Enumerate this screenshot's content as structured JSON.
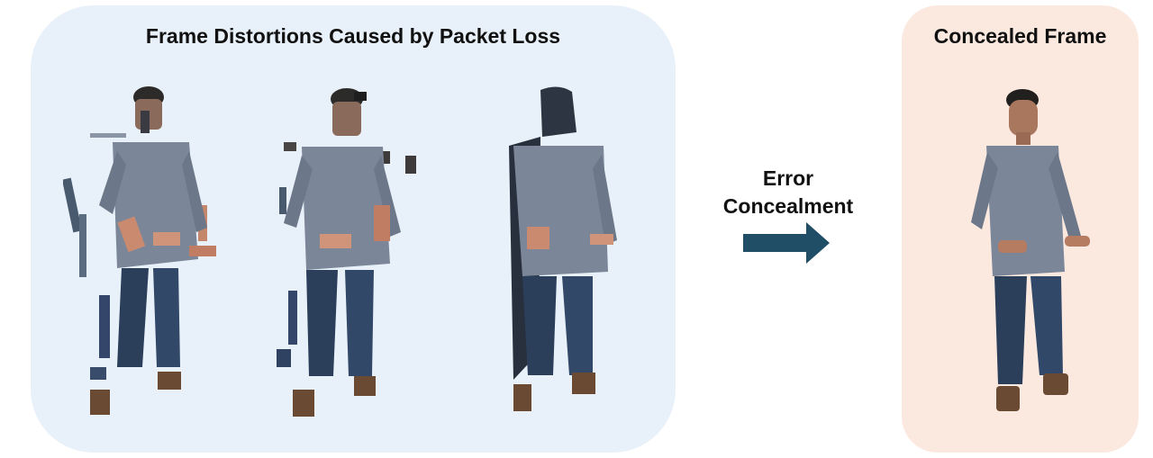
{
  "left_panel": {
    "title": "Frame Distortions Caused by Packet Loss"
  },
  "transition": {
    "label_line1": "Error",
    "label_line2": "Concealment"
  },
  "right_panel": {
    "title": "Concealed Frame"
  },
  "colors": {
    "left_panel_bg": "#e8f1f9",
    "right_panel_bg": "#fbe9e0",
    "arrow": "#1f4e66"
  }
}
